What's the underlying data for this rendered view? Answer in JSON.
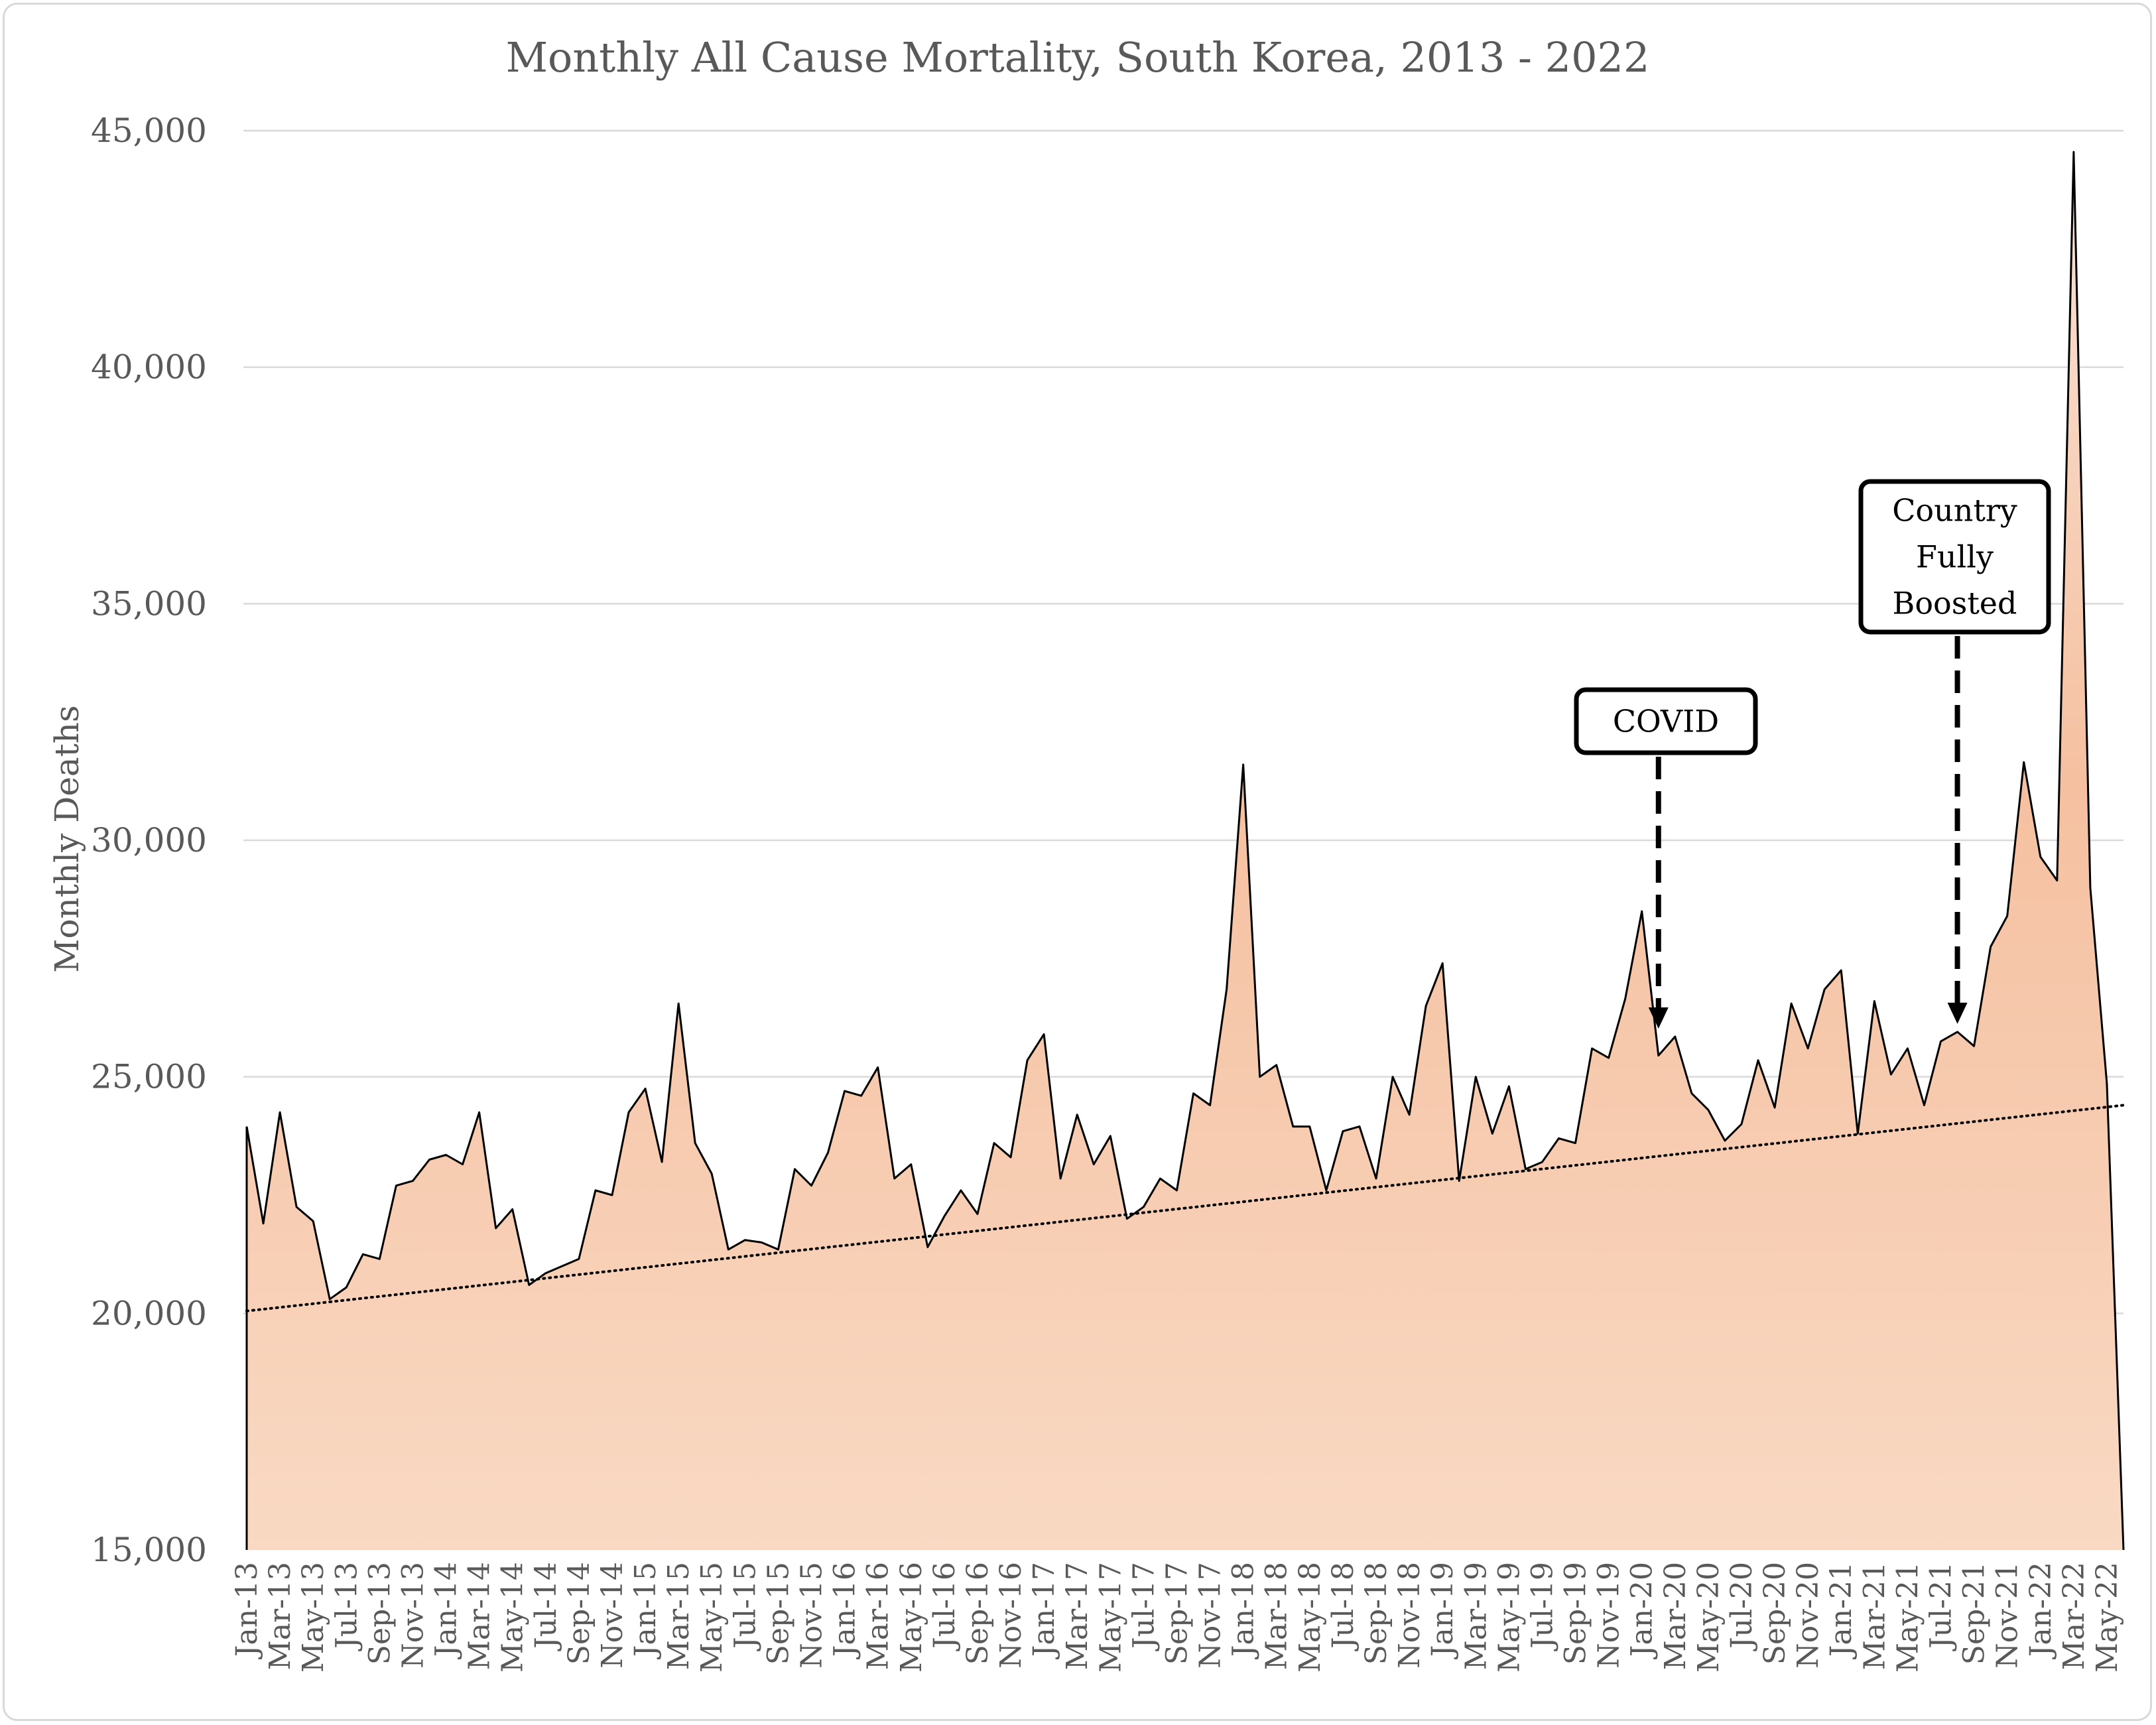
{
  "chart_data": {
    "type": "area",
    "title": "Monthly All Cause Mortality, South Korea, 2013 - 2022",
    "xlabel": "",
    "ylabel": "Monthly Deaths",
    "ylim": [
      15000,
      45000
    ],
    "yticks": [
      "15,000",
      "20,000",
      "25,000",
      "30,000",
      "35,000",
      "40,000",
      "45,000"
    ],
    "ytick_values": [
      15000,
      20000,
      25000,
      30000,
      35000,
      40000,
      45000
    ],
    "grid": true,
    "x": [
      "Jan-13",
      "Feb-13",
      "Mar-13",
      "Apr-13",
      "May-13",
      "Jun-13",
      "Jul-13",
      "Aug-13",
      "Sep-13",
      "Oct-13",
      "Nov-13",
      "Dec-13",
      "Jan-14",
      "Feb-14",
      "Mar-14",
      "Apr-14",
      "May-14",
      "Jun-14",
      "Jul-14",
      "Aug-14",
      "Sep-14",
      "Oct-14",
      "Nov-14",
      "Dec-14",
      "Jan-15",
      "Feb-15",
      "Mar-15",
      "Apr-15",
      "May-15",
      "Jun-15",
      "Jul-15",
      "Aug-15",
      "Sep-15",
      "Oct-15",
      "Nov-15",
      "Dec-15",
      "Jan-16",
      "Feb-16",
      "Mar-16",
      "Apr-16",
      "May-16",
      "Jun-16",
      "Jul-16",
      "Aug-16",
      "Sep-16",
      "Oct-16",
      "Nov-16",
      "Dec-16",
      "Jan-17",
      "Feb-17",
      "Mar-17",
      "Apr-17",
      "May-17",
      "Jun-17",
      "Jul-17",
      "Aug-17",
      "Sep-17",
      "Oct-17",
      "Nov-17",
      "Dec-17",
      "Jan-18",
      "Feb-18",
      "Mar-18",
      "Apr-18",
      "May-18",
      "Jun-18",
      "Jul-18",
      "Aug-18",
      "Sep-18",
      "Oct-18",
      "Nov-18",
      "Dec-18",
      "Jan-19",
      "Feb-19",
      "Mar-19",
      "Apr-19",
      "May-19",
      "Jun-19",
      "Jul-19",
      "Aug-19",
      "Sep-19",
      "Oct-19",
      "Nov-19",
      "Dec-19",
      "Jan-20",
      "Feb-20",
      "Mar-20",
      "Apr-20",
      "May-20",
      "Jun-20",
      "Jul-20",
      "Aug-20",
      "Sep-20",
      "Oct-20",
      "Nov-20",
      "Dec-20",
      "Jan-21",
      "Feb-21",
      "Mar-21",
      "Apr-21",
      "May-21",
      "Jun-21",
      "Jul-21",
      "Aug-21",
      "Sep-21",
      "Oct-21",
      "Nov-21",
      "Dec-21",
      "Jan-22",
      "Feb-22",
      "Mar-22",
      "Apr-22",
      "May-22",
      "Jun-22"
    ],
    "xtick_labels": [
      "Jan-13",
      "Mar-13",
      "May-13",
      "Jul-13",
      "Sep-13",
      "Nov-13",
      "Jan-14",
      "Mar-14",
      "May-14",
      "Jul-14",
      "Sep-14",
      "Nov-14",
      "Jan-15",
      "Mar-15",
      "May-15",
      "Jul-15",
      "Sep-15",
      "Nov-15",
      "Jan-16",
      "Mar-16",
      "May-16",
      "Jul-16",
      "Sep-16",
      "Nov-16",
      "Jan-17",
      "Mar-17",
      "May-17",
      "Jul-17",
      "Sep-17",
      "Nov-17",
      "Jan-18",
      "Mar-18",
      "May-18",
      "Jul-18",
      "Sep-18",
      "Nov-18",
      "Jan-19",
      "Mar-19",
      "May-19",
      "Jul-19",
      "Sep-19",
      "Nov-19",
      "Jan-20",
      "Mar-20",
      "May-20",
      "Jul-20",
      "Sep-20",
      "Nov-20",
      "Jan-21",
      "Mar-21",
      "May-21",
      "Jul-21",
      "Sep-21",
      "Nov-21",
      "Jan-22",
      "Mar-22",
      "May-22"
    ],
    "series": [
      {
        "values": [
          23950,
          21900,
          24250,
          22250,
          21950,
          20300,
          20550,
          21250,
          21150,
          22700,
          22800,
          23250,
          23350,
          23150,
          24250,
          21800,
          22200,
          20600,
          20850,
          21000,
          21150,
          22600,
          22500,
          24250,
          24750,
          23200,
          26550,
          23600,
          22950,
          21350,
          21550,
          21500,
          21350,
          23050,
          22700,
          23400,
          24700,
          24600,
          25200,
          22850,
          23150,
          21400,
          22050,
          22600,
          22100,
          23600,
          23300,
          25350,
          25900,
          22850,
          24200,
          23150,
          23750,
          22000,
          22250,
          22850,
          22600,
          24650,
          24400,
          26850,
          31600,
          25000,
          25250,
          23950,
          23950,
          22600,
          23850,
          23950,
          22850,
          25000,
          24200,
          26500,
          27400,
          22800,
          25000,
          23800,
          24800,
          23050,
          23200,
          23700,
          23600,
          25600,
          25400,
          26650,
          28500,
          25450,
          25850,
          24650,
          24300,
          23650,
          24000,
          25350,
          24350,
          26550,
          25600,
          26850,
          27250,
          23800,
          26600,
          25050,
          25600,
          24400,
          25750,
          25950,
          25650,
          27750,
          28400,
          31650,
          29650,
          29150,
          44550,
          29000,
          24850,
          15000
        ]
      }
    ],
    "trend": {
      "style": "dotted",
      "start": 20050,
      "end": 24400
    },
    "fill_color_top": "#f9d9c3",
    "fill_color_bottom": "#f5c0a0",
    "annotations": [
      {
        "text_lines": [
          "COVID"
        ],
        "x": "Feb-20",
        "y": 25850
      },
      {
        "text_lines": [
          "Country",
          "Fully",
          "Boosted"
        ],
        "x": "Aug-21",
        "y": 25950
      }
    ]
  }
}
